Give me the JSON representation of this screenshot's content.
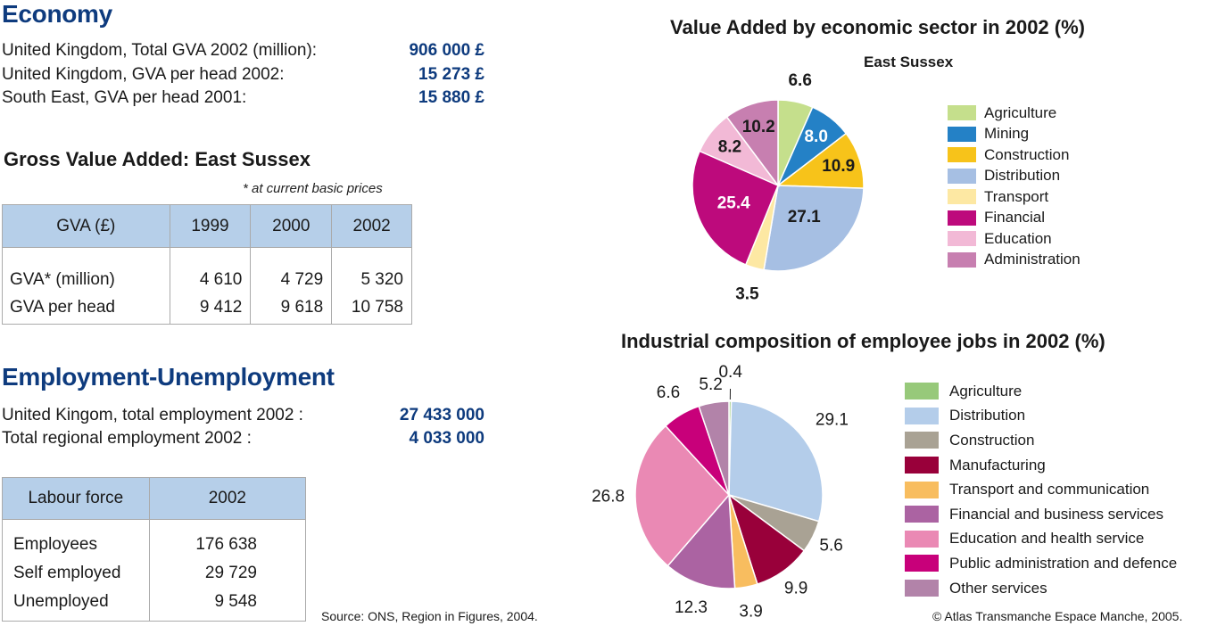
{
  "economy": {
    "title": "Economy",
    "rows": [
      {
        "label": "United Kingdom, Total GVA 2002 (million):",
        "value": "906 000 £"
      },
      {
        "label": "United Kingdom, GVA per head 2002:",
        "value": "15 273 £"
      },
      {
        "label": "South East, GVA per head 2001:",
        "value": "15 880 £"
      }
    ]
  },
  "gva": {
    "title": "Gross Value Added: East Sussex",
    "note": "* at current basic prices",
    "headers": [
      "GVA (£)",
      "1999",
      "2000",
      "2002"
    ],
    "rows": [
      [
        "GVA* (million)",
        "4 610",
        "4 729",
        "5 320"
      ],
      [
        "GVA per head",
        "9 412",
        "9 618",
        "10 758"
      ]
    ]
  },
  "employment": {
    "title": "Employment-Unemployment",
    "rows": [
      {
        "label": "United Kingom, total employment 2002 :",
        "value": "27 433 000"
      },
      {
        "label": "Total regional employment 2002 :",
        "value": "4 033 000"
      }
    ]
  },
  "labour": {
    "headers": [
      "Labour force",
      "2002"
    ],
    "rows": [
      [
        "Employees",
        "176 638"
      ],
      [
        "Self employed",
        "29 729"
      ],
      [
        "Unemployed",
        "9 548"
      ]
    ]
  },
  "footer": {
    "source": "Source: ONS, Region in Figures, 2004.",
    "copyright": "© Atlas Transmanche Espace Manche, 2005."
  },
  "chart_data": [
    {
      "type": "pie",
      "title": "Value Added by economic sector in 2002 (%)",
      "subtitle": "East Sussex",
      "labels": [
        "Agriculture",
        "Mining",
        "Construction",
        "Distribution",
        "Transport",
        "Financial",
        "Education",
        "Administration"
      ],
      "values": [
        6.6,
        8.0,
        10.9,
        27.1,
        3.5,
        25.4,
        8.2,
        10.2
      ],
      "value_labels": [
        "6.6",
        "8.0",
        "10.9",
        "27.1",
        "3.5",
        "25.4",
        "8.2",
        "10.2"
      ],
      "colors": [
        "#c5df8c",
        "#2481c6",
        "#f7c31a",
        "#a6bfe3",
        "#fde8a3",
        "#bd0a7c",
        "#f2b9d6",
        "#c77fb0"
      ],
      "legend": "right"
    },
    {
      "type": "pie",
      "title": "Industrial composition of employee jobs in 2002 (%)",
      "labels": [
        "Agriculture",
        "Distribution",
        "Construction",
        "Manufacturing",
        "Transport and communication",
        "Financial and business services",
        "Education and health service",
        "Public administration and defence",
        "Other services"
      ],
      "values": [
        0.4,
        29.1,
        5.6,
        9.9,
        3.9,
        12.3,
        26.8,
        6.6,
        5.2
      ],
      "value_labels": [
        "0.4",
        "29.1",
        "5.6",
        "9.9",
        "3.9",
        "12.3",
        "26.8",
        "6.6",
        "5.2"
      ],
      "colors": [
        "#97c97a",
        "#b4cdea",
        "#a9a294",
        "#99003a",
        "#f8bd5f",
        "#ab63a2",
        "#ea89b4",
        "#c8007a",
        "#b283a9"
      ],
      "legend": "right"
    }
  ]
}
